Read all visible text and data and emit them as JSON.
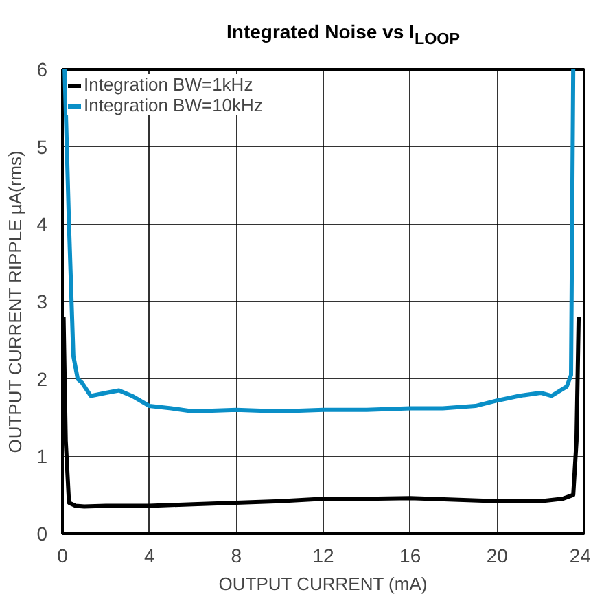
{
  "chart_data": {
    "type": "line",
    "title": "Integrated Noise vs I$_{LOOP}$",
    "xlabel": "OUTPUT CURRENT (mA)",
    "ylabel": "OUTPUT CURRENT RIPPLE µA(rms)",
    "series": [
      {
        "name": "Integration BW=1kHz",
        "color": "#000000",
        "x": [
          0.05,
          0.15,
          0.3,
          0.6,
          1,
          2,
          3,
          4,
          6,
          8,
          10,
          12,
          14,
          16,
          18,
          20,
          22,
          23,
          23.5,
          23.65,
          23.75
        ],
        "values": [
          2.8,
          1.2,
          0.4,
          0.36,
          0.35,
          0.36,
          0.36,
          0.36,
          0.38,
          0.4,
          0.42,
          0.45,
          0.45,
          0.46,
          0.44,
          0.42,
          0.42,
          0.45,
          0.5,
          1.2,
          2.8
        ]
      },
      {
        "name": "Integration BW=10kHz",
        "color": "#0a8fc7",
        "x": [
          0.1,
          0.3,
          0.5,
          0.7,
          0.9,
          1.3,
          2,
          2.6,
          3.2,
          4,
          5,
          6,
          8,
          10,
          12,
          14,
          16,
          17.5,
          19,
          20,
          21,
          22,
          22.5,
          23.2,
          23.4,
          23.5
        ],
        "values": [
          6,
          4,
          2.3,
          2.0,
          1.95,
          1.78,
          1.82,
          1.85,
          1.78,
          1.65,
          1.62,
          1.58,
          1.6,
          1.58,
          1.6,
          1.6,
          1.62,
          1.62,
          1.65,
          1.72,
          1.78,
          1.82,
          1.78,
          1.9,
          2.05,
          6
        ]
      }
    ],
    "xlim": [
      0,
      24
    ],
    "ylim": [
      0,
      6
    ],
    "xticks": [
      0,
      4,
      8,
      12,
      16,
      20,
      24
    ],
    "yticks": [
      0,
      1,
      2,
      3,
      4,
      5,
      6
    ],
    "grid": true,
    "legend": "top left",
    "marker": "none",
    "line_style": "solid"
  }
}
